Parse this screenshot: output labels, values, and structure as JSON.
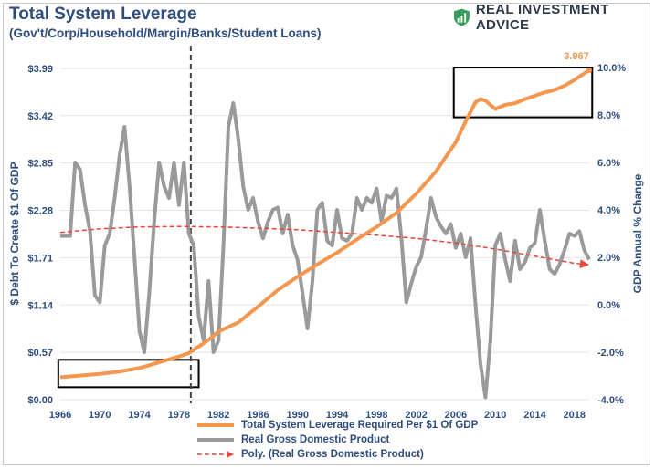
{
  "header": {
    "title": "Total System Leverage",
    "subtitle": "(Gov't/Corp/Household/Margin/Banks/Student Loans)",
    "brand": "REAL INVESTMENT ADVICE"
  },
  "colors": {
    "leverage": "#f5964f",
    "gdp": "#9a9a9a",
    "poly": "#e8453c",
    "axis_text": "#2e4d7f"
  },
  "chart_data": {
    "type": "line",
    "title": "Total System Leverage",
    "subtitle": "(Gov't/Corp/Household/Margin/Banks/Student Loans)",
    "ylabel_left": "$ Debt To Create $1 Of GDP",
    "ylabel_right": "GDP Annual % Change",
    "x_range": [
      1966,
      2019.5
    ],
    "x_ticks": [
      "1966",
      "1970",
      "1974",
      "1978",
      "1982",
      "1986",
      "1990",
      "1994",
      "1998",
      "2002",
      "2006",
      "2010",
      "2014",
      "2018"
    ],
    "y_left_range": [
      0,
      4.0
    ],
    "y_left_ticks": [
      "$0.00",
      "$0.57",
      "$1.14",
      "$1.71",
      "$2.28",
      "$2.85",
      "$3.42",
      "$3.99"
    ],
    "y_right_range": [
      -4.0,
      10.0
    ],
    "y_right_ticks": [
      "-4.0%",
      "-2.0%",
      "0.0%",
      "2.0%",
      "4.0%",
      "6.0%",
      "8.0%",
      "10.0%"
    ],
    "vertical_marker_year": 1979.2,
    "annotation": "3.967",
    "highlight_boxes": [
      {
        "x0": 1965.8,
        "x1": 1980.0,
        "y0": 0.15,
        "y1": 0.48
      },
      {
        "x0": 2005.8,
        "x1": 2019.8,
        "y0": 3.4,
        "y1": 4.0
      }
    ],
    "series": [
      {
        "name": "Total System Leverage Required Per $1 Of GDP",
        "axis": "left",
        "style": "solid",
        "x": [
          1966,
          1968,
          1970,
          1972,
          1974,
          1976,
          1978,
          1979,
          1980,
          1981,
          1982,
          1984,
          1986,
          1988,
          1990,
          1992,
          1994,
          1996,
          1998,
          2000,
          2002,
          2004,
          2006,
          2007,
          2008,
          2008.5,
          2009,
          2010,
          2011,
          2012,
          2013,
          2014,
          2015,
          2016,
          2017,
          2018,
          2019.5
        ],
        "values": [
          0.27,
          0.29,
          0.31,
          0.34,
          0.38,
          0.45,
          0.52,
          0.56,
          0.64,
          0.72,
          0.82,
          0.93,
          1.12,
          1.32,
          1.48,
          1.63,
          1.77,
          1.93,
          2.08,
          2.25,
          2.48,
          2.75,
          3.1,
          3.35,
          3.58,
          3.62,
          3.6,
          3.5,
          3.55,
          3.57,
          3.62,
          3.66,
          3.7,
          3.73,
          3.78,
          3.85,
          3.967
        ]
      },
      {
        "name": "Real Gross Domestic Product",
        "axis": "right",
        "style": "solid",
        "x": [
          1966,
          1967,
          1967.5,
          1968,
          1968.5,
          1969,
          1969.5,
          1970,
          1970.5,
          1971,
          1971.5,
          1972,
          1972.5,
          1973,
          1973.5,
          1974,
          1974.5,
          1975,
          1975.5,
          1976,
          1976.5,
          1977,
          1977.5,
          1978,
          1978.5,
          1979,
          1979.5,
          1980,
          1980.5,
          1981,
          1981.5,
          1982,
          1982.5,
          1983,
          1983.5,
          1984,
          1984.5,
          1985,
          1985.5,
          1986,
          1986.5,
          1987,
          1987.5,
          1988,
          1988.5,
          1989,
          1989.5,
          1990,
          1990.5,
          1991,
          1991.5,
          1992,
          1992.5,
          1993,
          1993.5,
          1994,
          1994.5,
          1995,
          1995.5,
          1996,
          1996.5,
          1997,
          1997.5,
          1998,
          1998.5,
          1999,
          1999.5,
          2000,
          2000.5,
          2001,
          2001.5,
          2002,
          2002.5,
          2003,
          2003.5,
          2004,
          2004.5,
          2005,
          2005.5,
          2006,
          2006.5,
          2007,
          2007.5,
          2008,
          2008.5,
          2009,
          2009.5,
          2010,
          2010.5,
          2011,
          2011.5,
          2012,
          2012.5,
          2013,
          2013.5,
          2014,
          2014.5,
          2015,
          2015.5,
          2016,
          2016.5,
          2017,
          2017.5,
          2018,
          2018.5,
          2019,
          2019.5
        ],
        "values": [
          2.9,
          2.9,
          6.0,
          5.7,
          4.2,
          3.1,
          0.4,
          0.1,
          2.5,
          3.0,
          4.5,
          6.3,
          7.5,
          5.0,
          2.0,
          -1.1,
          -2.0,
          0.5,
          3.5,
          6.0,
          5.0,
          4.5,
          6.0,
          4.2,
          6.0,
          3.0,
          2.5,
          -0.5,
          -1.5,
          1.0,
          -2.0,
          -1.5,
          2.5,
          7.5,
          8.5,
          7.0,
          5.0,
          4.0,
          4.5,
          3.5,
          2.8,
          3.5,
          4.0,
          4.1,
          3.0,
          3.8,
          2.5,
          1.9,
          0.5,
          -1.0,
          1.0,
          4.0,
          4.3,
          2.7,
          2.5,
          4.0,
          2.8,
          2.7,
          3.0,
          4.5,
          4.0,
          4.5,
          4.3,
          4.9,
          3.5,
          4.6,
          4.5,
          4.9,
          2.8,
          0.1,
          0.9,
          1.6,
          2.0,
          3.2,
          4.5,
          3.7,
          3.3,
          3.0,
          3.4,
          2.4,
          3.0,
          2.0,
          2.8,
          0.0,
          -2.5,
          -3.9,
          -1.5,
          2.5,
          3.0,
          1.9,
          1.0,
          2.7,
          1.5,
          1.8,
          2.4,
          2.6,
          4.0,
          2.7,
          1.5,
          1.3,
          1.7,
          2.3,
          3.0,
          2.9,
          3.1,
          2.3,
          1.9
        ]
      },
      {
        "name": "Poly. (Real Gross Domestic Product)",
        "axis": "right",
        "style": "dashed",
        "x": [
          1966,
          1970,
          1974,
          1978,
          1982,
          1986,
          1990,
          1994,
          1998,
          2002,
          2006,
          2010,
          2014,
          2018,
          2019.5
        ],
        "values": [
          3.05,
          3.2,
          3.28,
          3.3,
          3.28,
          3.23,
          3.16,
          3.05,
          2.93,
          2.8,
          2.6,
          2.35,
          2.05,
          1.75,
          1.68
        ]
      }
    ]
  },
  "legend": {
    "items": [
      "Total System Leverage Required Per $1 Of GDP",
      "Real Gross Domestic Product",
      "Poly. (Real Gross Domestic Product)"
    ]
  }
}
